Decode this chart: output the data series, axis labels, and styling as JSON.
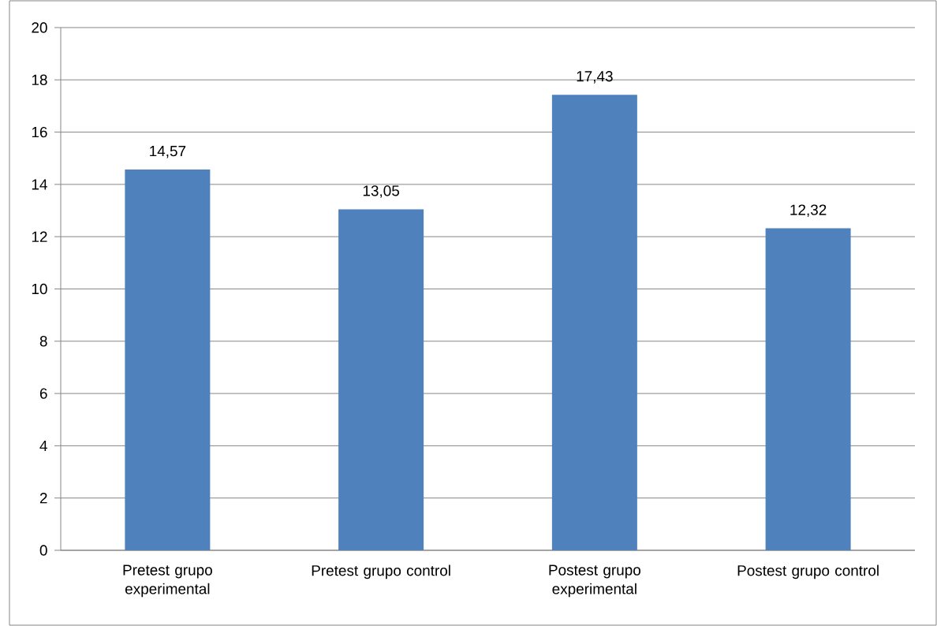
{
  "chart_data": {
    "type": "bar",
    "categories": [
      "Pretest grupo experimental",
      "Pretest grupo control",
      "Postest grupo experimental",
      "Postest grupo control"
    ],
    "values": [
      14.57,
      13.05,
      17.43,
      12.32
    ],
    "value_labels": [
      "14,57",
      "13,05",
      "17,43",
      "12,32"
    ],
    "color": "#4f81bd",
    "ylim": [
      0,
      20
    ],
    "yticks": [
      0,
      2,
      4,
      6,
      8,
      10,
      12,
      14,
      16,
      18,
      20
    ],
    "grid": "y"
  }
}
